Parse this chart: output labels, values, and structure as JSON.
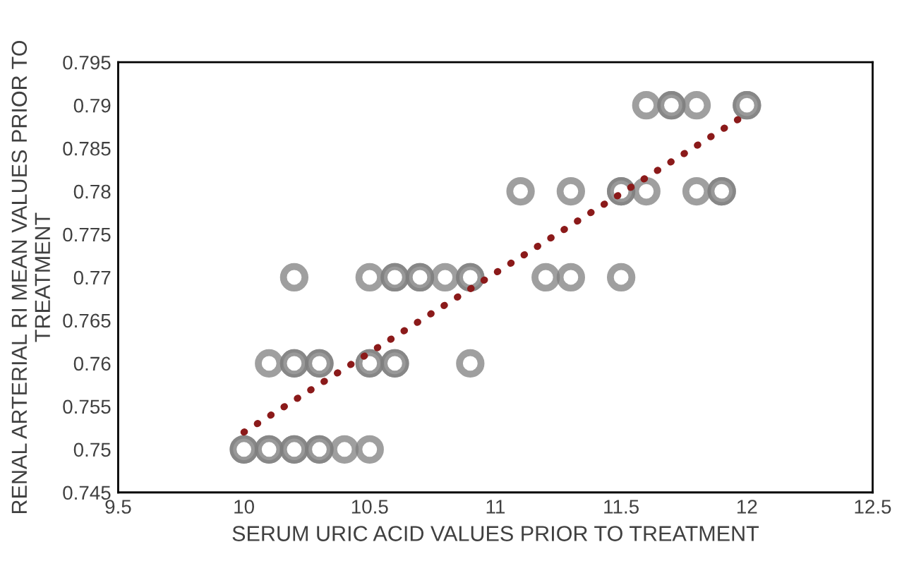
{
  "chart_data": {
    "type": "scatter",
    "xlabel": "SERUM URIC ACID VALUES PRIOR TO TREATMENT",
    "ylabel": "RENAL ARTERIAL RI MEAN VALUES PRIOR TO TREATMENT",
    "xlim": [
      9.5,
      12.5
    ],
    "ylim": [
      0.745,
      0.795
    ],
    "xticks": [
      9.5,
      10,
      10.5,
      11,
      11.5,
      12,
      12.5
    ],
    "yticks": [
      0.745,
      0.75,
      0.755,
      0.76,
      0.765,
      0.77,
      0.775,
      0.78,
      0.785,
      0.79,
      0.795
    ],
    "grid": false,
    "legend": false,
    "marker": "circle",
    "series": [
      {
        "color": "#7f7f7f",
        "x": [
          11.6,
          11.7,
          11.7,
          11.8,
          12.0,
          12.0,
          11.1,
          11.3,
          11.5,
          11.5,
          11.6,
          11.8,
          11.9,
          11.9,
          10.2,
          10.5,
          10.6,
          10.6,
          10.7,
          10.7,
          10.8,
          10.9,
          10.9,
          11.2,
          11.3,
          11.5,
          10.1,
          10.2,
          10.2,
          10.3,
          10.3,
          10.5,
          10.5,
          10.6,
          10.6,
          10.9,
          10.0,
          10.0,
          10.1,
          10.1,
          10.2,
          10.2,
          10.3,
          10.3,
          10.4,
          10.5
        ],
        "values": [
          0.79,
          0.79,
          0.79,
          0.79,
          0.79,
          0.79,
          0.78,
          0.78,
          0.78,
          0.78,
          0.78,
          0.78,
          0.78,
          0.78,
          0.77,
          0.77,
          0.77,
          0.77,
          0.77,
          0.77,
          0.77,
          0.77,
          0.77,
          0.77,
          0.77,
          0.77,
          0.76,
          0.76,
          0.76,
          0.76,
          0.76,
          0.76,
          0.76,
          0.76,
          0.76,
          0.76,
          0.75,
          0.75,
          0.75,
          0.75,
          0.75,
          0.75,
          0.75,
          0.75,
          0.75,
          0.75
        ]
      },
      {
        "type": "line",
        "color": "#8b1a1a",
        "marker": "none",
        "line_style": "dotted",
        "x": [
          10.0,
          12.0
        ],
        "values": [
          0.752,
          0.789
        ]
      }
    ]
  }
}
